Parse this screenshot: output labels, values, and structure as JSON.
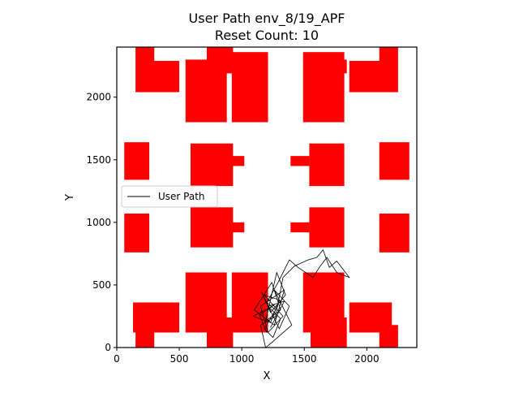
{
  "chart_data": {
    "type": "line",
    "title": "User Path env_8/19_APF",
    "subtitle": "Reset Count: 10",
    "xlabel": "X",
    "ylabel": "Y",
    "xlim": [
      0,
      2400
    ],
    "ylim": [
      0,
      2400
    ],
    "x_ticks": [
      0,
      500,
      1000,
      1500,
      2000
    ],
    "y_ticks": [
      0,
      500,
      1000,
      1500,
      2000
    ],
    "grid": false,
    "legend": {
      "placement": "center-left",
      "entries": [
        "User Path"
      ]
    },
    "colors": {
      "obstacle": "#ff0000",
      "path": "#000000"
    },
    "obstacles": [
      [
        150,
        2040,
        300,
        2400
      ],
      [
        190,
        2040,
        500,
        2290
      ],
      [
        550,
        1800,
        880,
        2300
      ],
      [
        720,
        2190,
        930,
        2400
      ],
      [
        920,
        1800,
        1210,
        2360
      ],
      [
        1490,
        1800,
        1820,
        2360
      ],
      [
        1550,
        2190,
        1840,
        2300
      ],
      [
        1860,
        2040,
        2200,
        2290
      ],
      [
        2100,
        2040,
        2250,
        2400
      ],
      [
        60,
        1340,
        260,
        1640
      ],
      [
        590,
        1290,
        930,
        1630
      ],
      [
        880,
        1450,
        1020,
        1530
      ],
      [
        1390,
        1450,
        1540,
        1530
      ],
      [
        1540,
        1290,
        1820,
        1630
      ],
      [
        2100,
        1340,
        2340,
        1640
      ],
      [
        60,
        760,
        260,
        1070
      ],
      [
        590,
        800,
        930,
        1120
      ],
      [
        880,
        920,
        1020,
        1000
      ],
      [
        1390,
        920,
        1540,
        1000
      ],
      [
        1540,
        800,
        1820,
        1120
      ],
      [
        2100,
        760,
        2340,
        1070
      ],
      [
        130,
        120,
        500,
        360
      ],
      [
        150,
        0,
        300,
        180
      ],
      [
        550,
        120,
        880,
        600
      ],
      [
        720,
        0,
        930,
        240
      ],
      [
        920,
        120,
        1210,
        600
      ],
      [
        1490,
        120,
        1820,
        600
      ],
      [
        1550,
        0,
        1840,
        240
      ],
      [
        1860,
        120,
        2200,
        360
      ],
      [
        2100,
        0,
        2250,
        180
      ]
    ],
    "path": [
      [
        1200,
        120
      ],
      [
        1140,
        260
      ],
      [
        1260,
        340
      ],
      [
        1090,
        250
      ],
      [
        1230,
        200
      ],
      [
        1300,
        380
      ],
      [
        1180,
        420
      ],
      [
        1330,
        250
      ],
      [
        1210,
        120
      ],
      [
        1150,
        330
      ],
      [
        1340,
        460
      ],
      [
        1260,
        180
      ],
      [
        1100,
        300
      ],
      [
        1240,
        520
      ],
      [
        1310,
        300
      ],
      [
        1190,
        210
      ],
      [
        1280,
        600
      ],
      [
        1350,
        420
      ],
      [
        1230,
        280
      ],
      [
        1160,
        440
      ],
      [
        1300,
        150
      ],
      [
        1380,
        330
      ],
      [
        1260,
        460
      ],
      [
        1400,
        180
      ],
      [
        1240,
        40
      ],
      [
        1190,
        0
      ],
      [
        1150,
        180
      ],
      [
        1270,
        250
      ],
      [
        1330,
        560
      ],
      [
        1420,
        650
      ],
      [
        1530,
        700
      ],
      [
        1600,
        720
      ],
      [
        1650,
        780
      ],
      [
        1700,
        640
      ],
      [
        1760,
        690
      ],
      [
        1860,
        560
      ],
      [
        1760,
        600
      ],
      [
        1680,
        720
      ],
      [
        1620,
        640
      ],
      [
        1570,
        560
      ],
      [
        1450,
        640
      ],
      [
        1380,
        700
      ],
      [
        1290,
        520
      ],
      [
        1200,
        360
      ],
      [
        1270,
        300
      ],
      [
        1180,
        150
      ],
      [
        1250,
        80
      ],
      [
        1310,
        230
      ],
      [
        1210,
        330
      ],
      [
        1340,
        370
      ],
      [
        1230,
        160
      ]
    ]
  }
}
